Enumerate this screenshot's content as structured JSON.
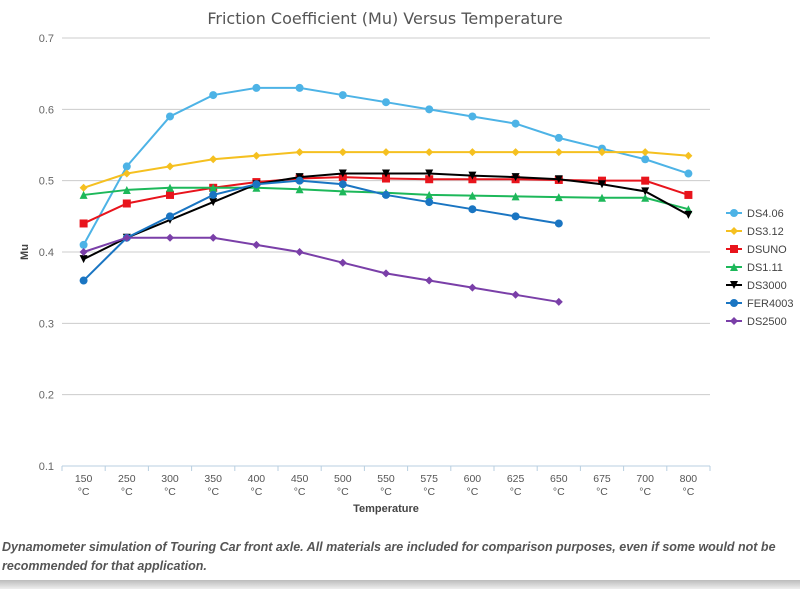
{
  "chart_data": {
    "type": "line",
    "title": "Friction Coefficient (Mu) Versus Temperature",
    "xlabel": "Temperature",
    "ylabel": "Mu",
    "categories": [
      "150 °C",
      "250 °C",
      "300 °C",
      "350 °C",
      "400 °C",
      "450 °C",
      "500 °C",
      "550 °C",
      "575 °C",
      "600 °C",
      "625 °C",
      "650 °C",
      "675 °C",
      "700 °C",
      "800 °C"
    ],
    "ylim": [
      0.1,
      0.7
    ],
    "yticks": [
      "0.1",
      "0.2",
      "0.3",
      "0.4",
      "0.5",
      "0.6",
      "0.7"
    ],
    "grid": true,
    "legend_position": "right",
    "series": [
      {
        "name": "DS4.06",
        "color": "#4db3e6",
        "marker": "circle",
        "values": [
          0.41,
          0.52,
          0.59,
          0.62,
          0.63,
          0.63,
          0.62,
          0.61,
          0.6,
          0.59,
          0.58,
          0.56,
          0.545,
          0.53,
          0.51
        ]
      },
      {
        "name": "DS3.12",
        "color": "#f5c020",
        "marker": "diamond",
        "values": [
          0.49,
          0.51,
          0.52,
          0.53,
          0.535,
          0.54,
          0.54,
          0.54,
          0.54,
          0.54,
          0.54,
          0.54,
          0.54,
          0.54,
          0.535
        ]
      },
      {
        "name": "DSUNO",
        "color": "#e8141c",
        "marker": "square",
        "values": [
          0.44,
          0.468,
          0.48,
          0.49,
          0.498,
          0.503,
          0.505,
          0.503,
          0.502,
          0.502,
          0.502,
          0.501,
          0.5,
          0.5,
          0.48
        ]
      },
      {
        "name": "DS1.11",
        "color": "#1db85a",
        "marker": "triangle",
        "values": [
          0.48,
          0.487,
          0.49,
          0.49,
          0.49,
          0.488,
          0.485,
          0.483,
          0.48,
          0.479,
          0.478,
          0.477,
          0.476,
          0.476,
          0.46
        ]
      },
      {
        "name": "DS3000",
        "color": "#000000",
        "marker": "triangle-down",
        "values": [
          0.39,
          0.42,
          0.445,
          0.47,
          0.495,
          0.505,
          0.51,
          0.51,
          0.51,
          0.507,
          0.505,
          0.502,
          0.495,
          0.485,
          0.452
        ]
      },
      {
        "name": "FER4003",
        "color": "#1a75c2",
        "marker": "circle",
        "values": [
          0.36,
          0.42,
          0.45,
          0.48,
          0.495,
          0.5,
          0.495,
          0.48,
          0.47,
          0.46,
          0.45,
          0.44,
          null,
          null,
          null
        ]
      },
      {
        "name": "DS2500",
        "color": "#7a3fa8",
        "marker": "diamond",
        "values": [
          0.4,
          0.42,
          0.42,
          0.42,
          0.41,
          0.4,
          0.385,
          0.37,
          0.36,
          0.35,
          0.34,
          0.33,
          null,
          null,
          null
        ]
      }
    ]
  },
  "caption": "Dynamometer simulation of Touring Car front axle. All materials are included for comparison purposes, even if some would not be recommended for that application."
}
